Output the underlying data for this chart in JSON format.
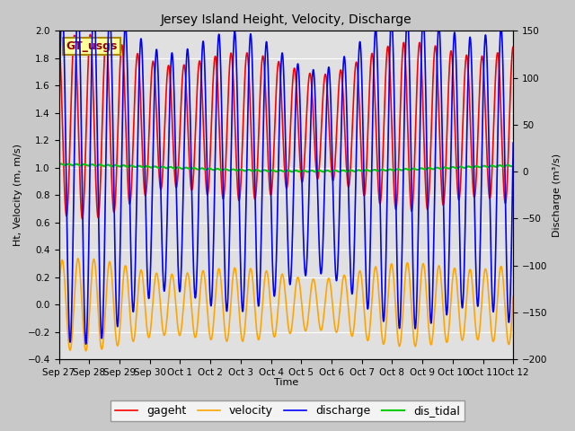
{
  "title": "Jersey Island Height, Velocity, Discharge",
  "xlabel": "Time",
  "ylabel_left": "Ht, Velocity (m, m/s)",
  "ylabel_right": "Discharge (m³/s)",
  "ylim_left": [
    -0.4,
    2.0
  ],
  "ylim_right": [
    -200,
    150
  ],
  "xlim": [
    0,
    360
  ],
  "xtick_positions": [
    0,
    24,
    48,
    72,
    96,
    120,
    144,
    168,
    192,
    216,
    240,
    264,
    288,
    312,
    336,
    360
  ],
  "xtick_labels": [
    "Sep 27",
    "Sep 28",
    "Sep 29",
    "Sep 30",
    "Oct 1",
    "Oct 2",
    "Oct 3",
    "Oct 4",
    "Oct 5",
    "Oct 6",
    "Oct 7",
    "Oct 8",
    "Oct 9",
    "Oct 10",
    "Oct 11",
    "Oct 12"
  ],
  "left_yticks": [
    -0.4,
    -0.2,
    0.0,
    0.2,
    0.4,
    0.6,
    0.8,
    1.0,
    1.2,
    1.4,
    1.6,
    1.8,
    2.0
  ],
  "right_yticks": [
    -200,
    -150,
    -100,
    -50,
    0,
    50,
    100,
    150
  ],
  "legend_labels": [
    "gageht",
    "velocity",
    "discharge",
    "dis_tidal"
  ],
  "colors": {
    "gageht": "#FF0000",
    "velocity": "#FFA500",
    "discharge": "#0000FF",
    "dis_tidal": "#00CC00"
  },
  "linewidths": {
    "gageht": 1.2,
    "velocity": 1.2,
    "discharge": 1.2,
    "dis_tidal": 1.5
  },
  "gt_usgs_label": "GT_usgs",
  "gt_usgs_color": "#990000",
  "gt_usgs_bg": "#FFFF99",
  "gt_usgs_border": "#AA8800",
  "fig_bg": "#C8C8C8",
  "plot_bg": "#E0E0E0",
  "n_points": 7200,
  "duration_hours": 360,
  "tidal_period_hours": 12.42,
  "title_fontsize": 10,
  "axis_label_fontsize": 8,
  "tick_fontsize": 7.5,
  "legend_fontsize": 9
}
